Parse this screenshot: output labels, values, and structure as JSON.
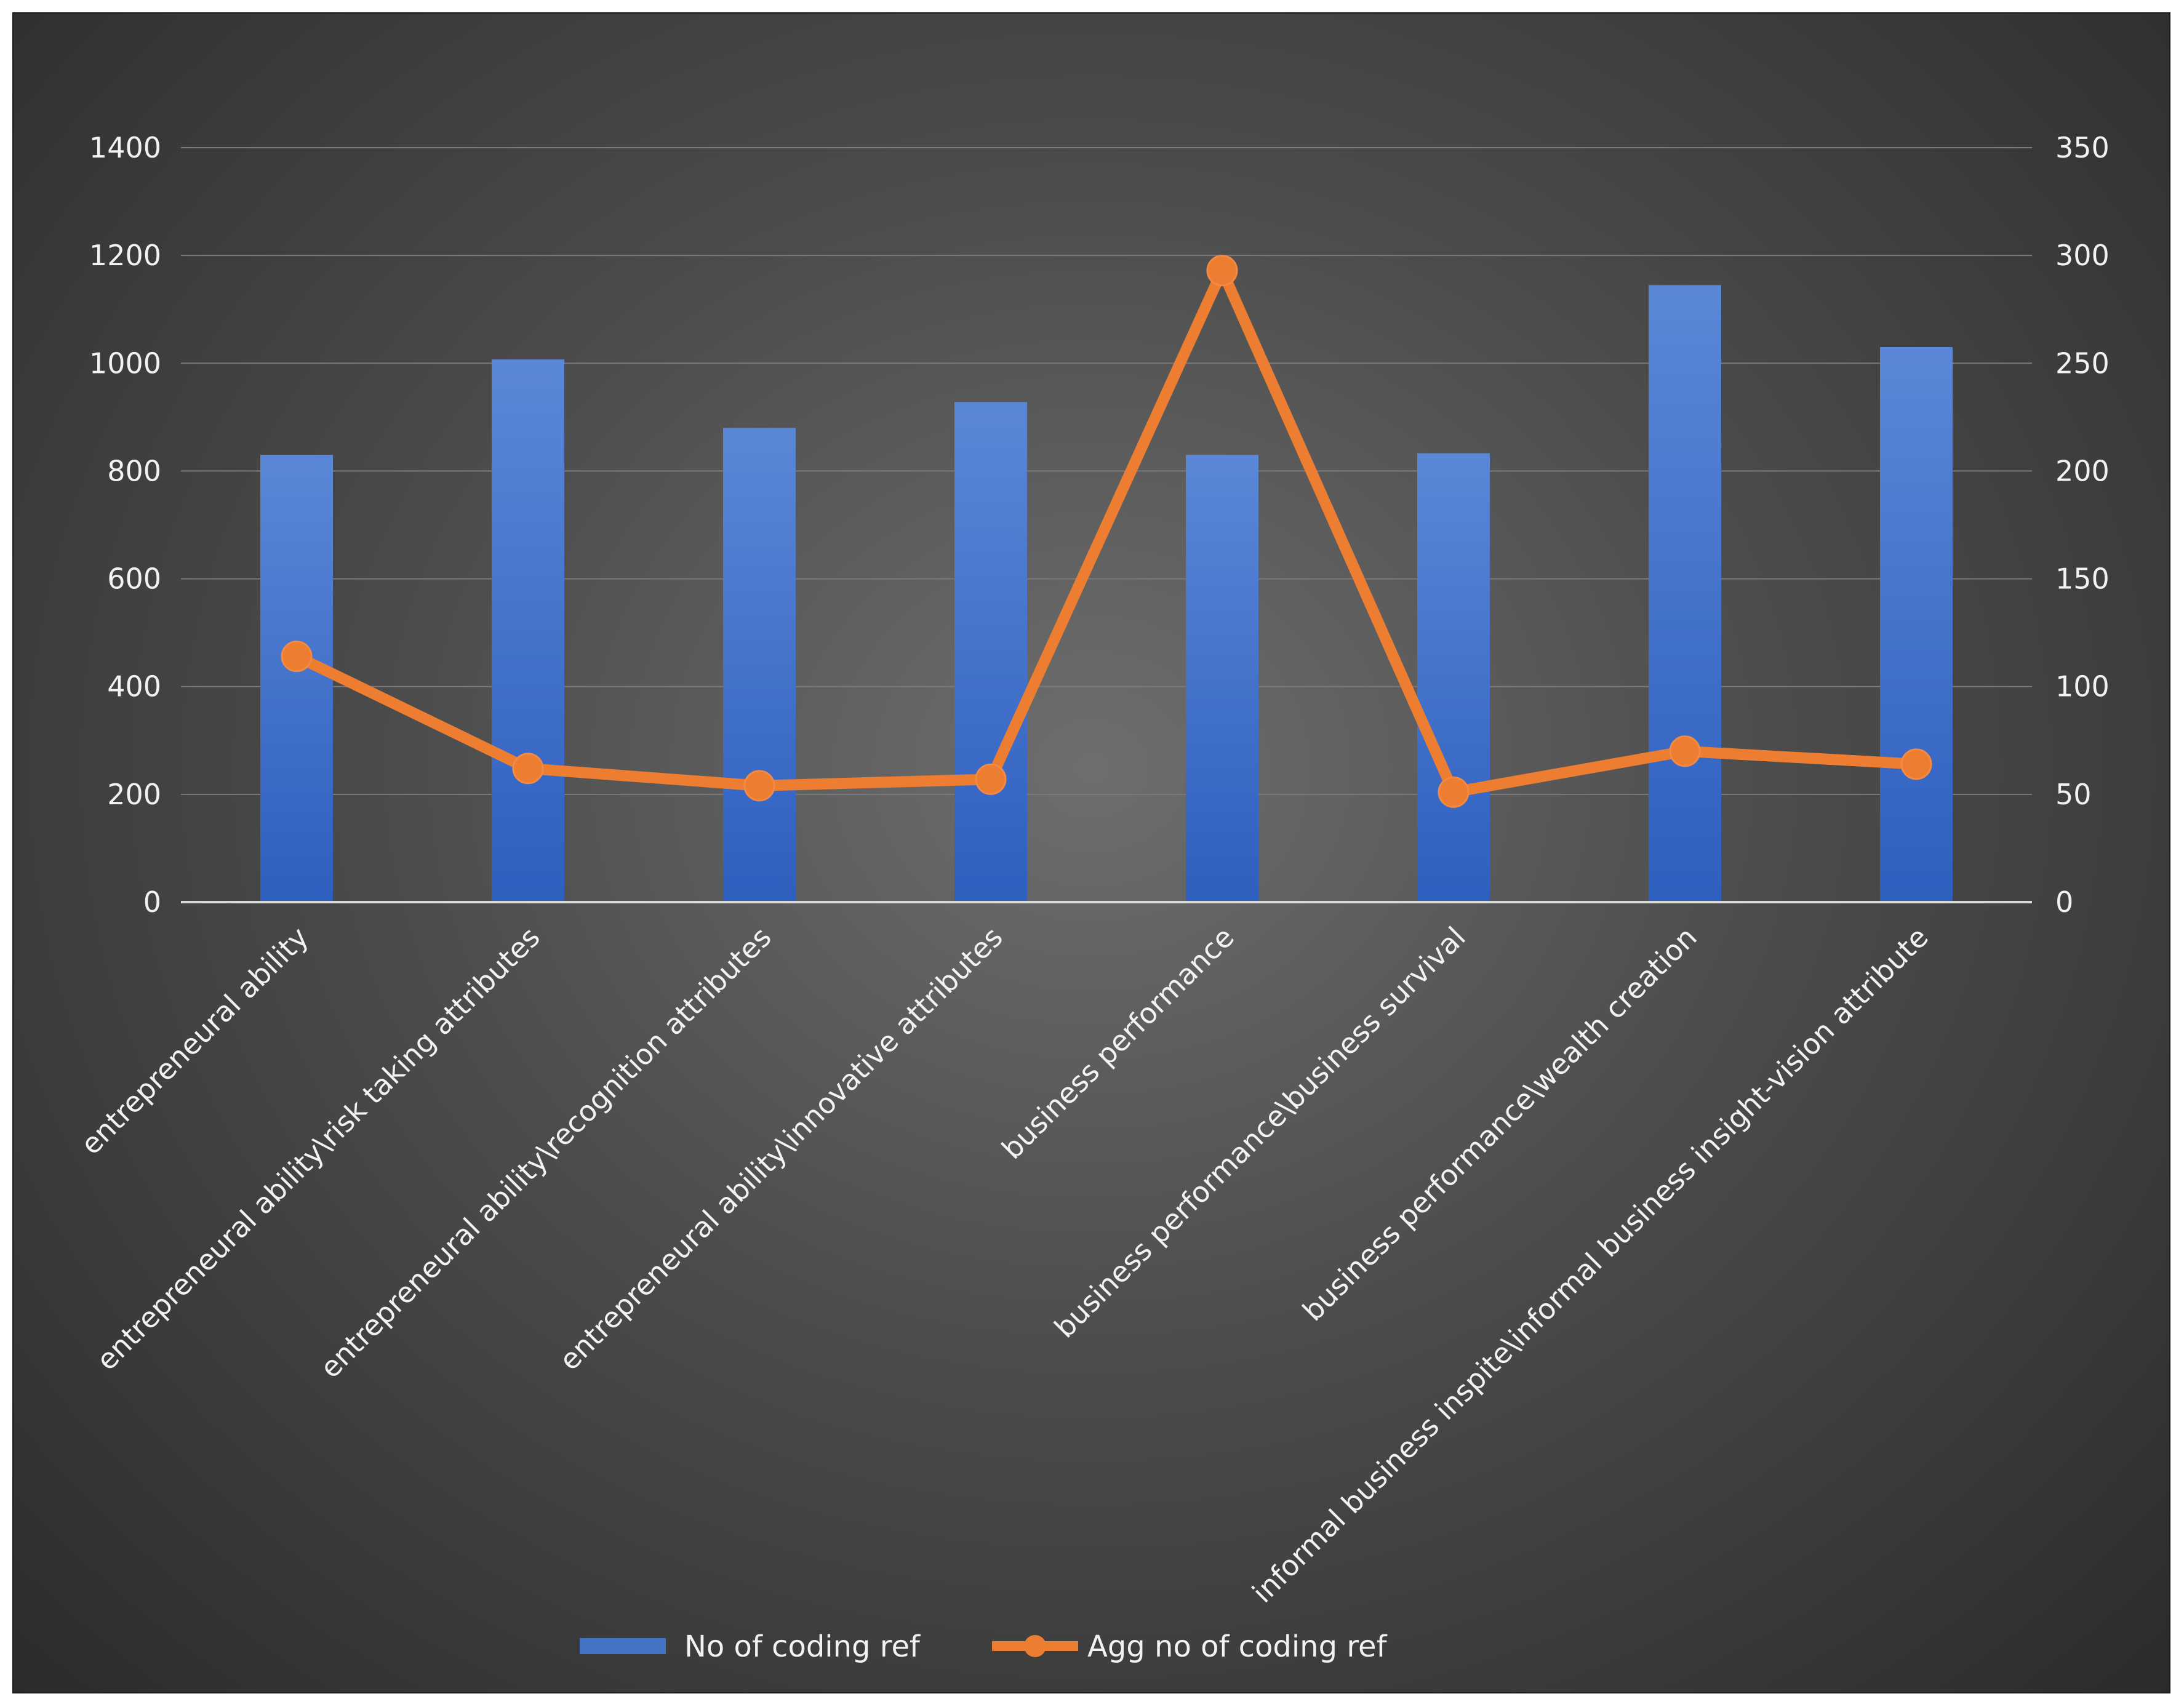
{
  "chart_data": {
    "type": "bar",
    "title": "",
    "categories": [
      "entrepreneural ability",
      "entrepreneural ability\\risk taking attributes",
      "entrepreneural ability\\recognition attributes",
      "entrepreneural ability\\innovative attributes",
      "business performance",
      "business performance\\business survival",
      "business performance\\wealth creation",
      "informal business inspite\\informal business insight-vision attribute"
    ],
    "series": [
      {
        "name": "No of coding ref",
        "type": "bar",
        "axis": "left",
        "color": "#4472c4",
        "values": [
          830,
          1007,
          880,
          928,
          830,
          833,
          1145,
          1030
        ]
      },
      {
        "name": "Agg no of coding ref",
        "type": "line",
        "axis": "right",
        "color": "#ed7d31",
        "values": [
          114,
          62,
          54,
          57,
          293,
          51,
          70,
          64
        ]
      }
    ],
    "y_left": {
      "min": 0,
      "max": 1400,
      "ticks": [
        "0",
        "200",
        "400",
        "600",
        "800",
        "1000",
        "1200",
        "1400"
      ]
    },
    "y_right": {
      "min": 0,
      "max": 350,
      "ticks": [
        "0",
        "50",
        "100",
        "150",
        "200",
        "250",
        "300",
        "350"
      ]
    },
    "grid": true,
    "legend_position": "bottom"
  }
}
